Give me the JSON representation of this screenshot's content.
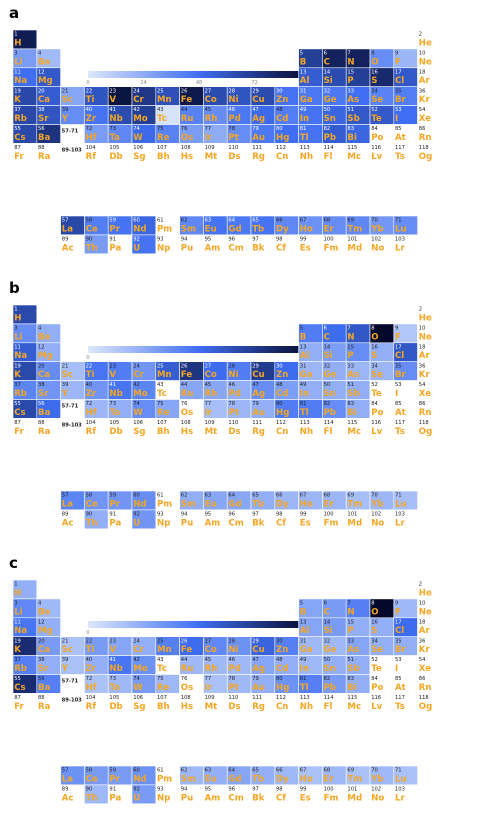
{
  "chart_data": [
    {
      "type": "heatmap",
      "panel": "a",
      "colorbar": {
        "min": 0,
        "max": 96,
        "ticks": [
          0,
          24,
          48,
          72,
          96
        ]
      },
      "values": {
        "1": 86,
        "3": 30,
        "4": 18,
        "11": 48,
        "12": 58,
        "5": 70,
        "6": 84,
        "7": 84,
        "8": 36,
        "9": 20,
        "13": 56,
        "14": 64,
        "15": 70,
        "16": 80,
        "17": 58,
        "19": 66,
        "20": 56,
        "21": 26,
        "22": 60,
        "23": 90,
        "24": 74,
        "25": 62,
        "26": 88,
        "27": 64,
        "28": 60,
        "29": 64,
        "30": 46,
        "31": 44,
        "32": 44,
        "33": 48,
        "34": 40,
        "35": 42,
        "37": 66,
        "38": 60,
        "39": 36,
        "40": 46,
        "41": 64,
        "42": 70,
        "43": 2,
        "44": 40,
        "45": 36,
        "46": 44,
        "47": 50,
        "48": 42,
        "49": 46,
        "50": 52,
        "51": 58,
        "52": 58,
        "53": 48,
        "55": 66,
        "56": 76,
        "72": 30,
        "73": 38,
        "74": 50,
        "75": 40,
        "76": 30,
        "77": 24,
        "78": 36,
        "79": 44,
        "80": 48,
        "81": 46,
        "82": 56,
        "83": 52,
        "57": 66,
        "58": 42,
        "59": 46,
        "60": 52,
        "62": 38,
        "63": 46,
        "64": 44,
        "65": 46,
        "66": 38,
        "67": 34,
        "68": 36,
        "69": 38,
        "70": 32,
        "71": 36,
        "90": 30,
        "92": 46
      }
    },
    {
      "type": "heatmap",
      "panel": "b",
      "colorbar": {
        "min": 0,
        "max": 59,
        "ticks": [
          0,
          59
        ]
      },
      "values": {
        "1": 40,
        "3": 22,
        "4": 14,
        "11": 34,
        "12": 14,
        "5": 26,
        "6": 30,
        "7": 36,
        "8": 59,
        "9": 8,
        "13": 14,
        "14": 18,
        "15": 22,
        "16": 14,
        "17": 36,
        "19": 40,
        "20": 22,
        "21": 10,
        "22": 28,
        "23": 26,
        "24": 20,
        "25": 34,
        "26": 46,
        "27": 30,
        "28": 26,
        "29": 44,
        "30": 30,
        "31": 12,
        "32": 14,
        "33": 12,
        "34": 12,
        "35": 22,
        "37": 24,
        "38": 20,
        "39": 12,
        "40": 20,
        "41": 28,
        "42": 24,
        "44": 16,
        "45": 16,
        "46": 14,
        "47": 22,
        "48": 18,
        "49": 14,
        "50": 14,
        "51": 14,
        "55": 40,
        "56": 30,
        "72": 12,
        "73": 14,
        "74": 22,
        "75": 16,
        "77": 10,
        "78": 12,
        "79": 14,
        "80": 26,
        "81": 26,
        "82": 22,
        "83": 14,
        "57": 24,
        "58": 20,
        "59": 20,
        "60": 22,
        "62": 14,
        "63": 16,
        "64": 16,
        "65": 14,
        "66": 12,
        "67": 12,
        "68": 12,
        "69": 10,
        "70": 12,
        "71": 10,
        "90": 14,
        "92": 20
      }
    },
    {
      "type": "heatmap",
      "panel": "c",
      "colorbar": {
        "min": 0,
        "max": 51,
        "ticks": [
          0,
          51
        ]
      },
      "values": {
        "1": 12,
        "3": 20,
        "4": 10,
        "11": 24,
        "12": 12,
        "5": 14,
        "6": 16,
        "7": 22,
        "8": 51,
        "9": 10,
        "13": 14,
        "14": 16,
        "15": 12,
        "16": 12,
        "17": 26,
        "19": 42,
        "20": 16,
        "21": 8,
        "22": 16,
        "23": 14,
        "24": 12,
        "25": 22,
        "26": 26,
        "27": 20,
        "28": 18,
        "29": 28,
        "30": 22,
        "31": 10,
        "32": 10,
        "33": 14,
        "34": 12,
        "35": 12,
        "37": 22,
        "38": 12,
        "39": 8,
        "40": 12,
        "41": 24,
        "42": 18,
        "44": 10,
        "45": 10,
        "46": 10,
        "47": 14,
        "48": 12,
        "49": 10,
        "50": 12,
        "51": 12,
        "55": 42,
        "56": 22,
        "72": 8,
        "73": 10,
        "74": 16,
        "75": 10,
        "77": 8,
        "78": 10,
        "79": 12,
        "80": 18,
        "81": 22,
        "82": 16,
        "83": 12,
        "57": 18,
        "58": 16,
        "59": 16,
        "60": 18,
        "62": 10,
        "63": 12,
        "64": 14,
        "65": 12,
        "66": 10,
        "67": 8,
        "68": 10,
        "69": 8,
        "70": 10,
        "71": 8,
        "90": 10,
        "92": 16
      }
    }
  ],
  "elements": [
    [
      "H",
      1
    ],
    [
      "He",
      2
    ],
    [
      "Li",
      3
    ],
    [
      "Be",
      4
    ],
    [
      "B",
      5
    ],
    [
      "C",
      6
    ],
    [
      "N",
      7
    ],
    [
      "O",
      8
    ],
    [
      "F",
      9
    ],
    [
      "Ne",
      10
    ],
    [
      "Na",
      11
    ],
    [
      "Mg",
      12
    ],
    [
      "Al",
      13
    ],
    [
      "Si",
      14
    ],
    [
      "P",
      15
    ],
    [
      "S",
      16
    ],
    [
      "Cl",
      17
    ],
    [
      "Ar",
      18
    ],
    [
      "K",
      19
    ],
    [
      "Ca",
      20
    ],
    [
      "Sc",
      21
    ],
    [
      "Ti",
      22
    ],
    [
      "V",
      23
    ],
    [
      "Cr",
      24
    ],
    [
      "Mn",
      25
    ],
    [
      "Fe",
      26
    ],
    [
      "Co",
      27
    ],
    [
      "Ni",
      28
    ],
    [
      "Cu",
      29
    ],
    [
      "Zn",
      30
    ],
    [
      "Ga",
      31
    ],
    [
      "Ge",
      32
    ],
    [
      "As",
      33
    ],
    [
      "Se",
      34
    ],
    [
      "Br",
      35
    ],
    [
      "Kr",
      36
    ],
    [
      "Rb",
      37
    ],
    [
      "Sr",
      38
    ],
    [
      "Y",
      39
    ],
    [
      "Zr",
      40
    ],
    [
      "Nb",
      41
    ],
    [
      "Mo",
      42
    ],
    [
      "Tc",
      43
    ],
    [
      "Ru",
      44
    ],
    [
      "Rh",
      45
    ],
    [
      "Pd",
      46
    ],
    [
      "Ag",
      47
    ],
    [
      "Cd",
      48
    ],
    [
      "In",
      49
    ],
    [
      "Sn",
      50
    ],
    [
      "Sb",
      51
    ],
    [
      "Te",
      52
    ],
    [
      "I",
      53
    ],
    [
      "Xe",
      54
    ],
    [
      "Cs",
      55
    ],
    [
      "Ba",
      56
    ],
    [
      "Hf",
      72
    ],
    [
      "Ta",
      73
    ],
    [
      "W",
      74
    ],
    [
      "Re",
      75
    ],
    [
      "Os",
      76
    ],
    [
      "Ir",
      77
    ],
    [
      "Pt",
      78
    ],
    [
      "Au",
      79
    ],
    [
      "Hg",
      80
    ],
    [
      "Tl",
      81
    ],
    [
      "Pb",
      82
    ],
    [
      "Bi",
      83
    ],
    [
      "Po",
      84
    ],
    [
      "At",
      85
    ],
    [
      "Rn",
      86
    ],
    [
      "Fr",
      87
    ],
    [
      "Ra",
      88
    ],
    [
      "Rf",
      104
    ],
    [
      "Db",
      105
    ],
    [
      "Sg",
      106
    ],
    [
      "Bh",
      107
    ],
    [
      "Hs",
      108
    ],
    [
      "Mt",
      109
    ],
    [
      "Ds",
      110
    ],
    [
      "Rg",
      111
    ],
    [
      "Cn",
      112
    ],
    [
      "Nh",
      113
    ],
    [
      "Fl",
      114
    ],
    [
      "Mc",
      115
    ],
    [
      "Lv",
      116
    ],
    [
      "Ts",
      117
    ],
    [
      "Og",
      118
    ],
    [
      "La",
      57
    ],
    [
      "Ce",
      58
    ],
    [
      "Pr",
      59
    ],
    [
      "Nd",
      60
    ],
    [
      "Pm",
      61
    ],
    [
      "Sm",
      62
    ],
    [
      "Eu",
      63
    ],
    [
      "Gd",
      64
    ],
    [
      "Tb",
      65
    ],
    [
      "Dy",
      66
    ],
    [
      "Ho",
      67
    ],
    [
      "Er",
      68
    ],
    [
      "Tm",
      69
    ],
    [
      "Yb",
      70
    ],
    [
      "Lu",
      71
    ],
    [
      "Ac",
      89
    ],
    [
      "Th",
      90
    ],
    [
      "Pa",
      91
    ],
    [
      "U",
      92
    ],
    [
      "Np",
      93
    ],
    [
      "Pu",
      94
    ],
    [
      "Am",
      95
    ],
    [
      "Cm",
      96
    ],
    [
      "Bk",
      97
    ],
    [
      "Cf",
      98
    ],
    [
      "Es",
      99
    ],
    [
      "Fm",
      100
    ],
    [
      "Md",
      101
    ],
    [
      "No",
      102
    ],
    [
      "Lr",
      103
    ]
  ],
  "placeholders": {
    "lanthanides": "57-71",
    "actinides": "89-103"
  },
  "colors": {
    "empty": "#ffffff",
    "low": "#dde8fb",
    "mid": "#3f6ef2",
    "high": "#04082a",
    "symbol": "#f5a623",
    "number": "#222222"
  }
}
